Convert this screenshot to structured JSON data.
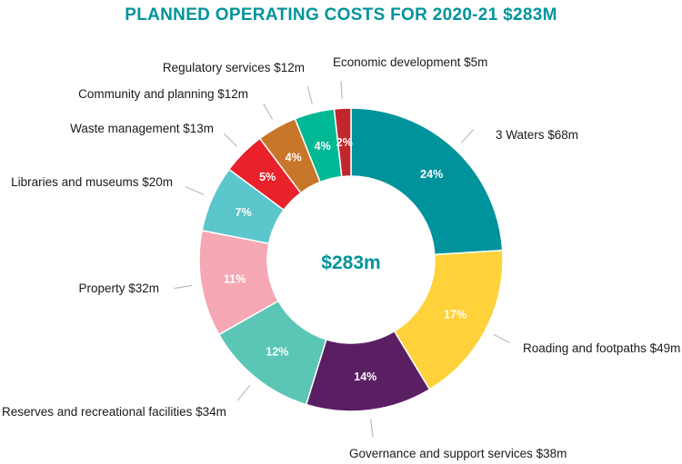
{
  "colors": {
    "title": "#00939c",
    "center": "#00939c",
    "leader": "#bdbdbd"
  },
  "chart_data": {
    "type": "pie",
    "title": "PLANNED OPERATING COSTS FOR 2020-21 $283M",
    "center_label": "$283m",
    "slices": [
      {
        "label": "3 Waters $68m",
        "value": 68,
        "percent_label": "24%",
        "color": "#00939c"
      },
      {
        "label": "Roading and footpaths $49m",
        "value": 49,
        "percent_label": "17%",
        "color": "#ffd23c"
      },
      {
        "label": "Governance and support services $38m",
        "value": 38,
        "percent_label": "14%",
        "color": "#5a1e63"
      },
      {
        "label": "Reserves and recreational facilities $34m",
        "value": 34,
        "percent_label": "12%",
        "color": "#5bc6b6"
      },
      {
        "label": "Property $32m",
        "value": 32,
        "percent_label": "11%",
        "color": "#f5a8b4"
      },
      {
        "label": "Libraries and museums $20m",
        "value": 20,
        "percent_label": "7%",
        "color": "#5bc6cc"
      },
      {
        "label": "Waste management $13m",
        "value": 13,
        "percent_label": "5%",
        "color": "#e8212b"
      },
      {
        "label": "Community and planning $12m",
        "value": 12,
        "percent_label": "4%",
        "color": "#c8762a"
      },
      {
        "label": "Regulatory services $12m",
        "value": 12,
        "percent_label": "4%",
        "color": "#00b894"
      },
      {
        "label": "Economic development $5m",
        "value": 5,
        "percent_label": "2%",
        "color": "#c1272d"
      }
    ]
  }
}
